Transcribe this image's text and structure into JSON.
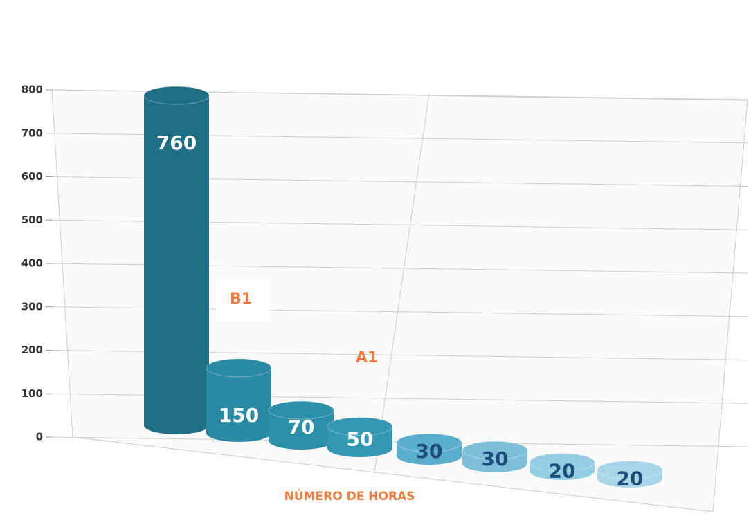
{
  "chart_data": {
    "type": "bar",
    "categories": [
      null,
      null,
      null,
      null,
      null,
      null,
      null,
      null
    ],
    "values": [
      760,
      150,
      70,
      50,
      30,
      30,
      20,
      20
    ],
    "colors": [
      "#1f6f84",
      "#2a8aa3",
      "#2b8fa8",
      "#3598b3",
      "#5aaecb",
      "#7dbfd8",
      "#95cde3",
      "#a8d6e8"
    ],
    "label_colors": [
      "#ffffff",
      "#ffffff",
      "#ffffff",
      "#ffffff",
      "#1d4e7a",
      "#1d4e7a",
      "#1d4e7a",
      "#1d4e7a"
    ],
    "ylim": [
      0,
      800
    ],
    "yticks": [
      0,
      100,
      200,
      300,
      400,
      500,
      600,
      700,
      800
    ],
    "grid": true,
    "xlabel": "NÚMERO DE HORAS",
    "annotations": [
      "B1",
      "A1"
    ]
  }
}
